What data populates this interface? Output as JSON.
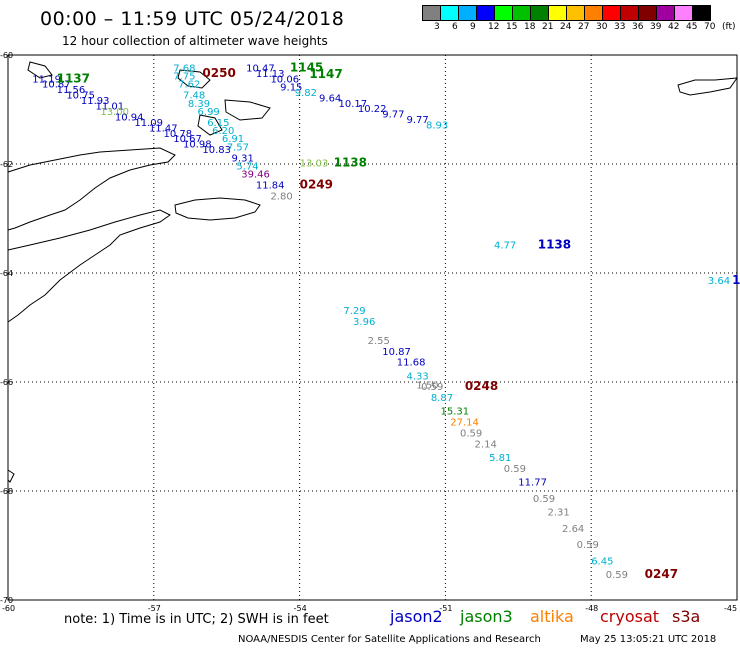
{
  "title": "00:00 – 11:59 UTC 05/24/2018",
  "subtitle": "12 hour collection of altimeter wave heights",
  "legend": {
    "unit_label": "(ft)",
    "colors": [
      "#808080",
      "#00ffff",
      "#00b0ff",
      "#0000ff",
      "#00ff00",
      "#00c000",
      "#008000",
      "#ffff00",
      "#ffc000",
      "#ff8000",
      "#ff0000",
      "#c00000",
      "#800000",
      "#a000a0",
      "#ff80ff",
      "#000000"
    ],
    "ticks": [
      "3",
      "6",
      "9",
      "12",
      "15",
      "18",
      "21",
      "24",
      "27",
      "30",
      "33",
      "36",
      "39",
      "42",
      "45",
      "70"
    ]
  },
  "axes": {
    "lon_labels": [
      "-60",
      "-57",
      "-54",
      "-51",
      "-48",
      "-45"
    ],
    "lat_labels": [
      "-60",
      "-62",
      "-64",
      "-66",
      "-68",
      "-70"
    ]
  },
  "colors": {
    "jason2": "#0000c0",
    "jason3": "#008000",
    "altika": "#ff8000",
    "cryosat": "#c00000",
    "s3a": "#800000",
    "gray": "#808080",
    "cyan": "#00b0d0",
    "lightgreen": "#80c040",
    "purple": "#800080"
  },
  "observations": [
    {
      "lon": -59.5,
      "lat": -60.5,
      "value": "11.19",
      "sat": "jason2"
    },
    {
      "lon": -59.3,
      "lat": -60.6,
      "value": "10.87",
      "sat": "jason2"
    },
    {
      "lon": -59.0,
      "lat": -60.7,
      "value": "11.56",
      "sat": "jason2"
    },
    {
      "lon": -58.8,
      "lat": -60.8,
      "value": "10.75",
      "sat": "jason2"
    },
    {
      "lon": -58.5,
      "lat": -60.9,
      "value": "11.93",
      "sat": "jason2"
    },
    {
      "lon": -58.2,
      "lat": -61.0,
      "value": "11.01",
      "sat": "jason2"
    },
    {
      "lon": -58.1,
      "lat": -61.1,
      "value": "13.00",
      "sat": "lightgreen"
    },
    {
      "lon": -57.8,
      "lat": -61.2,
      "value": "10.94",
      "sat": "jason2"
    },
    {
      "lon": -57.4,
      "lat": -61.3,
      "value": "11.09",
      "sat": "jason2"
    },
    {
      "lon": -57.1,
      "lat": -61.4,
      "value": "11.47",
      "sat": "jason2"
    },
    {
      "lon": -56.8,
      "lat": -61.5,
      "value": "10.78",
      "sat": "jason2"
    },
    {
      "lon": -56.6,
      "lat": -61.6,
      "value": "10.67",
      "sat": "jason2"
    },
    {
      "lon": -56.4,
      "lat": -61.7,
      "value": "10.98",
      "sat": "jason2"
    },
    {
      "lon": -56.0,
      "lat": -61.8,
      "value": "10.83",
      "sat": "jason2"
    },
    {
      "lon": -56.6,
      "lat": -60.3,
      "value": "7.68",
      "sat": "cyan"
    },
    {
      "lon": -56.6,
      "lat": -60.45,
      "value": "7.75",
      "sat": "cyan"
    },
    {
      "lon": -56.5,
      "lat": -60.6,
      "value": "7.62",
      "sat": "cyan"
    },
    {
      "lon": -56.4,
      "lat": -60.8,
      "value": "7.48",
      "sat": "cyan"
    },
    {
      "lon": -56.3,
      "lat": -60.95,
      "value": "8.39",
      "sat": "cyan"
    },
    {
      "lon": -56.1,
      "lat": -61.1,
      "value": "6.99",
      "sat": "cyan"
    },
    {
      "lon": -55.9,
      "lat": -61.3,
      "value": "6.15",
      "sat": "cyan"
    },
    {
      "lon": -55.8,
      "lat": -61.45,
      "value": "6.20",
      "sat": "cyan"
    },
    {
      "lon": -55.6,
      "lat": -61.6,
      "value": "6.91",
      "sat": "cyan"
    },
    {
      "lon": -55.5,
      "lat": -61.75,
      "value": "7.57",
      "sat": "cyan"
    },
    {
      "lon": -55.4,
      "lat": -61.95,
      "value": "9.31",
      "sat": "jason2"
    },
    {
      "lon": -55.3,
      "lat": -62.1,
      "value": "5.74",
      "sat": "cyan"
    },
    {
      "lon": -55.2,
      "lat": -62.25,
      "value": "39.46",
      "sat": "purple"
    },
    {
      "lon": -54.9,
      "lat": -62.45,
      "value": "11.84",
      "sat": "jason2"
    },
    {
      "lon": -54.6,
      "lat": -62.65,
      "value": "2.80",
      "sat": "gray"
    },
    {
      "lon": -55.1,
      "lat": -60.3,
      "value": "10.47",
      "sat": "jason2"
    },
    {
      "lon": -54.9,
      "lat": -60.4,
      "value": "11.13",
      "sat": "jason2"
    },
    {
      "lon": -54.6,
      "lat": -60.5,
      "value": "10.06",
      "sat": "jason2"
    },
    {
      "lon": -54.4,
      "lat": -60.65,
      "value": "9.15",
      "sat": "jason2"
    },
    {
      "lon": -54.1,
      "lat": -60.75,
      "value": "9.82",
      "sat": "cyan"
    },
    {
      "lon": -53.6,
      "lat": -60.85,
      "value": "9.64",
      "sat": "jason2"
    },
    {
      "lon": -53.2,
      "lat": -60.95,
      "value": "10.17",
      "sat": "jason2"
    },
    {
      "lon": -52.8,
      "lat": -61.05,
      "value": "10.22",
      "sat": "jason2"
    },
    {
      "lon": -52.3,
      "lat": -61.15,
      "value": "9.77",
      "sat": "jason2"
    },
    {
      "lon": -51.8,
      "lat": -61.25,
      "value": "9.77",
      "sat": "jason2"
    },
    {
      "lon": -51.4,
      "lat": -61.35,
      "value": "8.93",
      "sat": "cyan"
    },
    {
      "lon": -54.0,
      "lat": -62.05,
      "value": "13.03",
      "sat": "lightgreen"
    },
    {
      "lon": -50.0,
      "lat": -63.55,
      "value": "4.77",
      "sat": "cyan"
    },
    {
      "lon": -45.6,
      "lat": -64.2,
      "value": "3.64",
      "sat": "cyan"
    },
    {
      "lon": -53.1,
      "lat": -64.75,
      "value": "7.29",
      "sat": "cyan"
    },
    {
      "lon": -52.9,
      "lat": -64.95,
      "value": "3.96",
      "sat": "cyan"
    },
    {
      "lon": -52.6,
      "lat": -65.3,
      "value": "2.55",
      "sat": "gray"
    },
    {
      "lon": -52.3,
      "lat": -65.5,
      "value": "10.87",
      "sat": "jason2"
    },
    {
      "lon": -52.0,
      "lat": -65.7,
      "value": "11.68",
      "sat": "jason2"
    },
    {
      "lon": -51.8,
      "lat": -65.95,
      "value": "4.33",
      "sat": "cyan"
    },
    {
      "lon": -51.5,
      "lat": -66.15,
      "value": "0.59",
      "sat": "gray"
    },
    {
      "lon": -51.6,
      "lat": -66.12,
      "value": "1.50",
      "sat": "gray"
    },
    {
      "lon": -51.3,
      "lat": -66.35,
      "value": "8.87",
      "sat": "cyan"
    },
    {
      "lon": -51.1,
      "lat": -66.6,
      "value": "15.31",
      "sat": "jason3"
    },
    {
      "lon": -50.9,
      "lat": -66.8,
      "value": "27.14",
      "sat": "altika"
    },
    {
      "lon": -50.7,
      "lat": -67.0,
      "value": "0.59",
      "sat": "gray"
    },
    {
      "lon": -50.4,
      "lat": -67.2,
      "value": "2.14",
      "sat": "gray"
    },
    {
      "lon": -50.1,
      "lat": -67.45,
      "value": "5.81",
      "sat": "cyan"
    },
    {
      "lon": -49.8,
      "lat": -67.65,
      "value": "0.59",
      "sat": "gray"
    },
    {
      "lon": -49.5,
      "lat": -67.9,
      "value": "11.77",
      "sat": "jason2"
    },
    {
      "lon": -49.2,
      "lat": -68.2,
      "value": "0.59",
      "sat": "gray"
    },
    {
      "lon": -48.9,
      "lat": -68.45,
      "value": "2.31",
      "sat": "gray"
    },
    {
      "lon": -48.6,
      "lat": -68.75,
      "value": "2.64",
      "sat": "gray"
    },
    {
      "lon": -48.3,
      "lat": -69.05,
      "value": "0.59",
      "sat": "gray"
    },
    {
      "lon": -48.0,
      "lat": -69.35,
      "value": "6.45",
      "sat": "cyan"
    },
    {
      "lon": -47.7,
      "lat": -69.6,
      "value": "0.59",
      "sat": "gray"
    }
  ],
  "pass_times": [
    {
      "lon": -59.0,
      "lat": -60.5,
      "value": "1137",
      "sat": "jason3"
    },
    {
      "lon": -56.0,
      "lat": -60.4,
      "value": "0250",
      "sat": "s3a"
    },
    {
      "lon": -54.2,
      "lat": -60.3,
      "value": "1145",
      "sat": "jason3"
    },
    {
      "lon": -53.8,
      "lat": -60.42,
      "value": "1147",
      "sat": "jason3"
    },
    {
      "lon": -53.3,
      "lat": -62.05,
      "value": "1138",
      "sat": "jason3"
    },
    {
      "lon": -54.0,
      "lat": -62.45,
      "value": "0249",
      "sat": "s3a"
    },
    {
      "lon": -49.1,
      "lat": -63.55,
      "value": "1138",
      "sat": "jason2"
    },
    {
      "lon": -45.1,
      "lat": -64.2,
      "value": "1",
      "sat": "jason2"
    },
    {
      "lon": -50.6,
      "lat": -66.15,
      "value": "0248",
      "sat": "s3a"
    },
    {
      "lon": -46.9,
      "lat": -69.6,
      "value": "0247",
      "sat": "s3a"
    }
  ],
  "note": "note: 1) Time is in UTC; 2) SWH is in feet",
  "satellites": [
    {
      "name": "jason2",
      "color": "#0000c0"
    },
    {
      "name": "jason3",
      "color": "#008000"
    },
    {
      "name": "altika",
      "color": "#ff8000"
    },
    {
      "name": "cryosat",
      "color": "#c00000"
    },
    {
      "name": "s3a",
      "color": "#800000"
    }
  ],
  "footer_left": "NOAA/NESDIS Center for Satellite Applications and Research",
  "footer_right": "May 25 13:05:21 UTC 2018"
}
